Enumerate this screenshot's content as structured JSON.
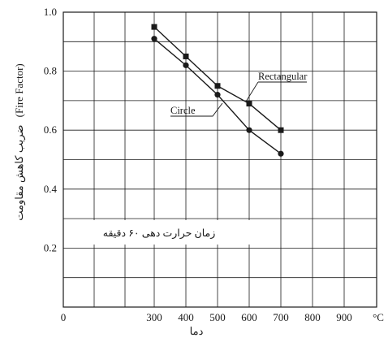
{
  "chart_data": {
    "type": "line",
    "xlabel": "دما",
    "ylabel_fa": "ضریب کاهش مقاومت",
    "ylabel_en": "(Fire Factor)",
    "x_unit": "°C",
    "note": "زمان حرارت دهی ۶۰ دقیقه",
    "x_ticks": [
      0,
      300,
      400,
      500,
      600,
      700,
      800,
      900
    ],
    "x_tick_labels": [
      "0",
      "300",
      "400",
      "500",
      "600",
      "700",
      "800",
      "900"
    ],
    "y_ticks": [
      0.2,
      0.4,
      0.6,
      0.8,
      1.0
    ],
    "y_tick_labels": [
      "0.2",
      "0.4",
      "0.6",
      "0.8",
      "1.0"
    ],
    "ylim": [
      0,
      1.0
    ],
    "grid": true,
    "series": [
      {
        "name": "Rectangular",
        "marker": "square",
        "x": [
          300,
          400,
          500,
          600,
          700
        ],
        "values": [
          0.95,
          0.85,
          0.75,
          0.69,
          0.6
        ]
      },
      {
        "name": "Circle",
        "marker": "circle",
        "x": [
          300,
          400,
          500,
          600,
          700
        ],
        "values": [
          0.91,
          0.82,
          0.72,
          0.6,
          0.52
        ]
      }
    ]
  }
}
